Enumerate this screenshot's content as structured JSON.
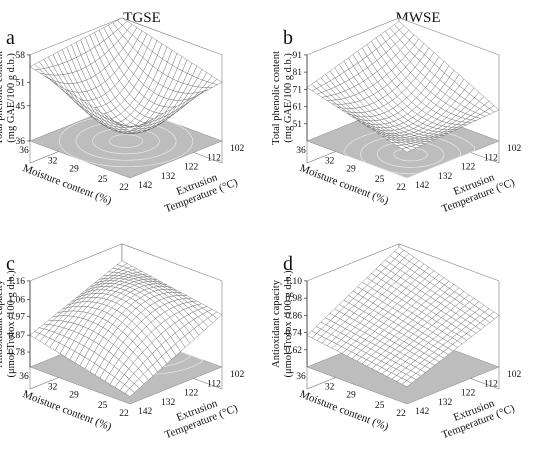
{
  "column_titles": [
    "TGSE",
    "MWSE"
  ],
  "chart_data": [
    {
      "type": "surface",
      "panel_label": "a",
      "column": "TGSE",
      "zlabel_lines": [
        "Total phenolic content",
        "(mg GAE/100 g d.b.)"
      ],
      "xlabel": "Moisture content (%)",
      "ylabel_lines": [
        "Extrusion",
        "Temperature (°C)"
      ],
      "x_ticks": [
        "36",
        "32",
        "29",
        "25",
        "22"
      ],
      "y_ticks": [
        "102",
        "112",
        "122",
        "132",
        "142"
      ],
      "z_ticks": [
        "36",
        "45",
        "51",
        "58"
      ],
      "xlim": [
        22,
        36
      ],
      "ylim": [
        102,
        142
      ],
      "zlim": [
        36,
        58
      ],
      "corners": {
        "m36_t102": 58,
        "m22_t102": 51,
        "m36_t142": 55,
        "m22_t142": 48
      },
      "min_point": {
        "moisture": 29,
        "temperature": 122,
        "z": 40
      }
    },
    {
      "type": "surface",
      "panel_label": "b",
      "column": "MWSE",
      "zlabel_lines": [
        "Total phenolic content",
        "(mg GAE/100 g d.b.)"
      ],
      "xlabel": "Moisture content (%)",
      "ylabel_lines": [
        "Extrusion",
        "Temperature (°C)"
      ],
      "x_ticks": [
        "36",
        "32",
        "29",
        "25",
        "22"
      ],
      "y_ticks": [
        "102",
        "112",
        "122",
        "132",
        "142"
      ],
      "z_ticks": [
        "51",
        "61",
        "71",
        "81",
        "91"
      ],
      "xlim": [
        22,
        36
      ],
      "ylim": [
        102,
        142
      ],
      "zlim": [
        41,
        91
      ],
      "corners": {
        "m36_t102": 89,
        "m22_t102": 59,
        "m36_t142": 72,
        "m22_t142": 56
      },
      "min_point": {
        "moisture": 26,
        "temperature": 128,
        "z": 49
      }
    },
    {
      "type": "surface",
      "panel_label": "c",
      "column": "TGSE",
      "zlabel_lines": [
        "Antioxidant capacity",
        "(μmol Trolox /100 g d.b.)"
      ],
      "xlabel": "Moisture content (%)",
      "ylabel_lines": [
        "Extrusion",
        "Temperature (°C)"
      ],
      "x_ticks": [
        "36",
        "32",
        "29",
        "25",
        "22"
      ],
      "y_ticks": [
        "102",
        "112",
        "122",
        "132",
        "142"
      ],
      "z_ticks": [
        "0.78",
        "0.87",
        "0.97",
        "1.06",
        "1.16"
      ],
      "xlim": [
        22,
        36
      ],
      "ylim": [
        102,
        142
      ],
      "zlim": [
        0.7,
        1.16
      ],
      "corners": {
        "m36_t102": 1.07,
        "m22_t102": 0.98,
        "m36_t142": 0.87,
        "m22_t142": 0.74
      },
      "max_point": {
        "moisture": 31,
        "temperature": 108,
        "z": 1.14
      }
    },
    {
      "type": "surface",
      "panel_label": "d",
      "column": "MWSE",
      "zlabel_lines": [
        "Antioxidant capacity",
        "(μmol Trolox /100 g d.b.)"
      ],
      "xlabel": "Moisture content (%)",
      "ylabel_lines": [
        "Extrusion",
        "Temperature (°C)"
      ],
      "x_ticks": [
        "36",
        "32",
        "29",
        "25",
        "22"
      ],
      "y_ticks": [
        "102",
        "112",
        "122",
        "132",
        "142"
      ],
      "z_ticks": [
        "0.62",
        "0.74",
        "0.86",
        "0.98",
        "1.10"
      ],
      "xlim": [
        22,
        36
      ],
      "ylim": [
        102,
        142
      ],
      "zlim": [
        0.5,
        1.1
      ],
      "corners": {
        "m36_t102": 1.08,
        "m22_t102": 0.86,
        "m36_t142": 0.72,
        "m22_t142": 0.62
      },
      "max_point": {
        "moisture": 36,
        "temperature": 102,
        "z": 1.08
      }
    }
  ]
}
